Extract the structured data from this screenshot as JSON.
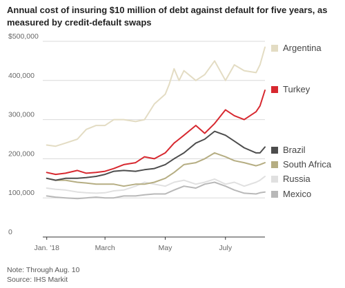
{
  "title": "Annual cost of insuring $10 million of debt against default for five years, as measured by credit-default swaps",
  "note": "Note: Through Aug. 10",
  "source": "Source: IHS Markit",
  "chart_data": {
    "type": "line",
    "ytick_labels": [
      "$500,000",
      "400,000",
      "300,000",
      "200,000",
      "100,000",
      "0"
    ],
    "yticks": [
      500000,
      400000,
      300000,
      200000,
      100000,
      0
    ],
    "ylim": [
      0,
      500000
    ],
    "xtick_labels": [
      "Jan. '18",
      "March",
      "May",
      "July"
    ],
    "xticks": [
      "2018-01-01",
      "2018-03-01",
      "2018-05-01",
      "2018-07-01"
    ],
    "xlim": [
      "2017-12-28",
      "2018-08-10"
    ],
    "grid": "horizontal",
    "legend_position": "right",
    "series": [
      {
        "name": "Argentina",
        "color": "#e3dcc3",
        "x": [
          "2018-01-01",
          "2018-01-10",
          "2018-01-20",
          "2018-02-01",
          "2018-02-10",
          "2018-02-20",
          "2018-03-01",
          "2018-03-10",
          "2018-03-20",
          "2018-04-01",
          "2018-04-10",
          "2018-04-20",
          "2018-05-01",
          "2018-05-05",
          "2018-05-10",
          "2018-05-15",
          "2018-05-20",
          "2018-06-01",
          "2018-06-10",
          "2018-06-20",
          "2018-07-01",
          "2018-07-10",
          "2018-07-20",
          "2018-08-01",
          "2018-08-05",
          "2018-08-10"
        ],
        "y": [
          235000,
          232000,
          240000,
          250000,
          275000,
          285000,
          285000,
          300000,
          300000,
          295000,
          300000,
          340000,
          365000,
          390000,
          430000,
          400000,
          425000,
          400000,
          415000,
          450000,
          400000,
          440000,
          425000,
          420000,
          440000,
          485000
        ]
      },
      {
        "name": "Turkey",
        "color": "#d7282f",
        "x": [
          "2018-01-01",
          "2018-01-10",
          "2018-01-20",
          "2018-02-01",
          "2018-02-10",
          "2018-02-20",
          "2018-03-01",
          "2018-03-10",
          "2018-03-20",
          "2018-04-01",
          "2018-04-10",
          "2018-04-20",
          "2018-05-01",
          "2018-05-10",
          "2018-05-20",
          "2018-06-01",
          "2018-06-10",
          "2018-06-20",
          "2018-07-01",
          "2018-07-10",
          "2018-07-20",
          "2018-08-01",
          "2018-08-05",
          "2018-08-10"
        ],
        "y": [
          165000,
          160000,
          163000,
          170000,
          163000,
          165000,
          168000,
          175000,
          185000,
          190000,
          205000,
          200000,
          215000,
          240000,
          260000,
          285000,
          265000,
          290000,
          325000,
          310000,
          300000,
          320000,
          335000,
          375000
        ]
      },
      {
        "name": "Brazil",
        "color": "#4d4d4d",
        "x": [
          "2018-01-01",
          "2018-01-10",
          "2018-01-20",
          "2018-02-01",
          "2018-02-10",
          "2018-02-20",
          "2018-03-01",
          "2018-03-10",
          "2018-03-20",
          "2018-04-01",
          "2018-04-10",
          "2018-04-20",
          "2018-05-01",
          "2018-05-10",
          "2018-05-20",
          "2018-06-01",
          "2018-06-10",
          "2018-06-20",
          "2018-07-01",
          "2018-07-10",
          "2018-07-20",
          "2018-08-01",
          "2018-08-05",
          "2018-08-10"
        ],
        "y": [
          150000,
          145000,
          150000,
          150000,
          152000,
          155000,
          160000,
          168000,
          170000,
          168000,
          172000,
          175000,
          185000,
          200000,
          215000,
          240000,
          250000,
          270000,
          260000,
          245000,
          228000,
          215000,
          215000,
          230000
        ]
      },
      {
        "name": "South Africa",
        "color": "#b5ad82",
        "x": [
          "2018-01-01",
          "2018-01-10",
          "2018-01-20",
          "2018-02-01",
          "2018-02-10",
          "2018-02-20",
          "2018-03-01",
          "2018-03-10",
          "2018-03-20",
          "2018-04-01",
          "2018-04-10",
          "2018-04-20",
          "2018-05-01",
          "2018-05-10",
          "2018-05-20",
          "2018-06-01",
          "2018-06-10",
          "2018-06-20",
          "2018-07-01",
          "2018-07-10",
          "2018-07-20",
          "2018-08-01",
          "2018-08-05",
          "2018-08-10"
        ],
        "y": [
          150000,
          145000,
          145000,
          140000,
          138000,
          135000,
          135000,
          135000,
          130000,
          135000,
          135000,
          140000,
          150000,
          165000,
          185000,
          190000,
          200000,
          215000,
          205000,
          195000,
          190000,
          182000,
          185000,
          190000
        ]
      },
      {
        "name": "Russia",
        "color": "#e0e0e0",
        "x": [
          "2018-01-01",
          "2018-01-10",
          "2018-01-20",
          "2018-02-01",
          "2018-02-10",
          "2018-02-20",
          "2018-03-01",
          "2018-03-10",
          "2018-03-20",
          "2018-04-01",
          "2018-04-10",
          "2018-04-20",
          "2018-05-01",
          "2018-05-10",
          "2018-05-20",
          "2018-06-01",
          "2018-06-10",
          "2018-06-20",
          "2018-07-01",
          "2018-07-10",
          "2018-07-20",
          "2018-08-01",
          "2018-08-05",
          "2018-08-10"
        ],
        "y": [
          125000,
          122000,
          120000,
          115000,
          113000,
          112000,
          113000,
          118000,
          120000,
          130000,
          140000,
          135000,
          130000,
          140000,
          145000,
          135000,
          140000,
          148000,
          135000,
          140000,
          130000,
          140000,
          145000,
          155000
        ]
      },
      {
        "name": "Mexico",
        "color": "#b8b8b8",
        "x": [
          "2018-01-01",
          "2018-01-10",
          "2018-01-20",
          "2018-02-01",
          "2018-02-10",
          "2018-02-20",
          "2018-03-01",
          "2018-03-10",
          "2018-03-20",
          "2018-04-01",
          "2018-04-10",
          "2018-04-20",
          "2018-05-01",
          "2018-05-10",
          "2018-05-20",
          "2018-06-01",
          "2018-06-10",
          "2018-06-20",
          "2018-07-01",
          "2018-07-10",
          "2018-07-20",
          "2018-08-01",
          "2018-08-05",
          "2018-08-10"
        ],
        "y": [
          105000,
          102000,
          100000,
          98000,
          100000,
          102000,
          100000,
          100000,
          105000,
          105000,
          108000,
          110000,
          110000,
          120000,
          130000,
          125000,
          135000,
          140000,
          130000,
          120000,
          112000,
          110000,
          113000,
          115000
        ]
      }
    ]
  }
}
